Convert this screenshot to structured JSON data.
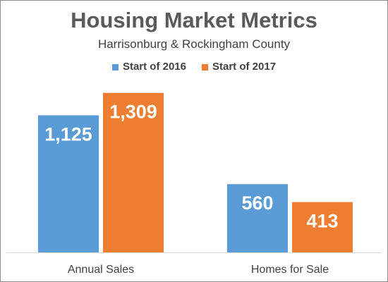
{
  "chart_data": {
    "type": "bar",
    "title": "Housing Market Metrics",
    "subtitle": "Harrisonburg & Rockingham County",
    "categories": [
      "Annual Sales",
      "Homes for Sale"
    ],
    "series": [
      {
        "name": "Start of 2016",
        "color": "#5b9bd5",
        "values": [
          1125,
          560
        ],
        "labels": [
          "1,125",
          "560"
        ]
      },
      {
        "name": "Start of 2017",
        "color": "#ed7d31",
        "values": [
          1309,
          413
        ],
        "labels": [
          "1,309",
          "413"
        ]
      }
    ],
    "xlabel": "",
    "ylabel": "",
    "ylim": [
      0,
      1400
    ],
    "grid": false,
    "legend_position": "top"
  }
}
